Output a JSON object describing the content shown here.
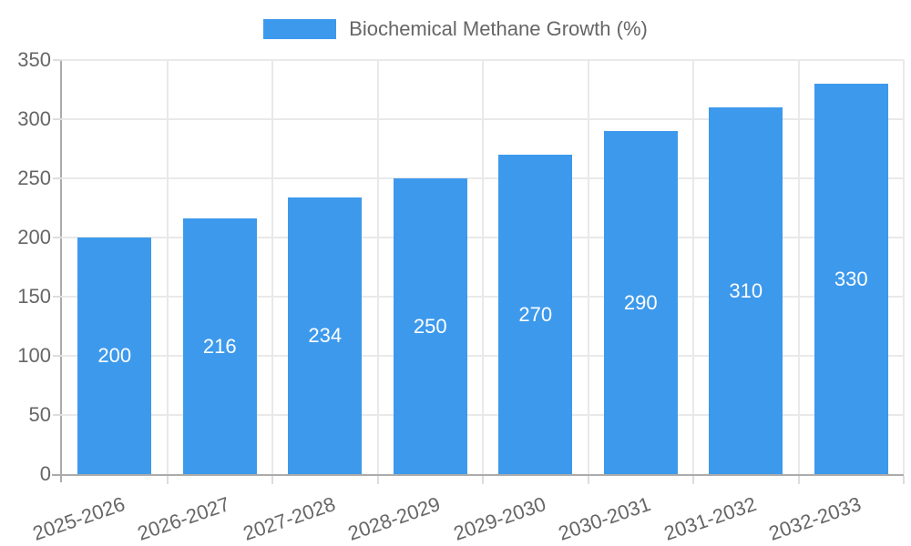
{
  "chart_data": {
    "type": "bar",
    "title": "",
    "legend": {
      "label": "Biochemical Methane Growth (%)",
      "position": "top"
    },
    "categories": [
      "2025-2026",
      "2026-2027",
      "2027-2028",
      "2028-2029",
      "2029-2030",
      "2030-2031",
      "2031-2032",
      "2032-2033"
    ],
    "values": [
      200,
      216,
      234,
      250,
      270,
      290,
      310,
      330
    ],
    "value_labels_shown": true,
    "xlabel": "",
    "ylabel": "",
    "ylim": [
      0,
      350
    ],
    "yticks": [
      0,
      50,
      100,
      150,
      200,
      250,
      300,
      350
    ],
    "grid": true,
    "colors": {
      "bar": "#3D99EC",
      "value_label": "#FFFFFF",
      "axis_text": "#666666",
      "grid_line": "#E9E9E9",
      "tick_line": "#DDDDDD",
      "axis_line": "#ABABAB"
    }
  }
}
